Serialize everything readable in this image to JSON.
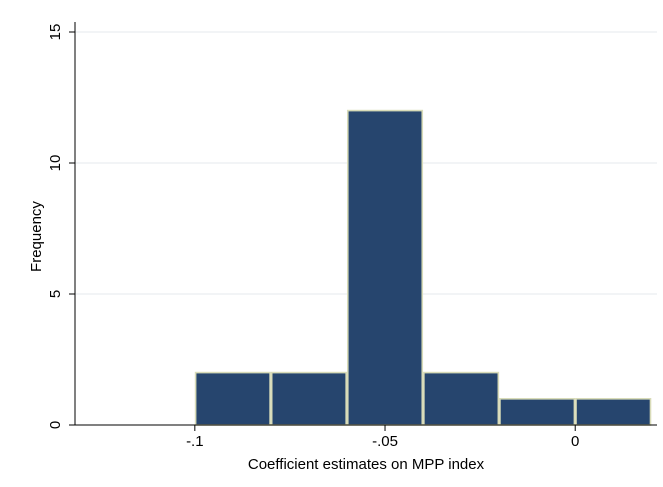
{
  "chart_data": {
    "type": "bar",
    "subtype": "histogram",
    "xlabel": "Coefficient estimates on MPP index",
    "ylabel": "Frequency",
    "xlim": [
      -0.1315,
      0.0215
    ],
    "ylim": [
      0,
      15
    ],
    "bin_width": 0.02,
    "bins": [
      {
        "start": -0.1,
        "end": -0.08,
        "value": 2
      },
      {
        "start": -0.08,
        "end": -0.06,
        "value": 2
      },
      {
        "start": -0.06,
        "end": -0.04,
        "value": 12
      },
      {
        "start": -0.04,
        "end": -0.02,
        "value": 2
      },
      {
        "start": -0.02,
        "end": 0.0,
        "value": 1
      },
      {
        "start": 0.0,
        "end": 0.02,
        "value": 1
      }
    ],
    "x_ticks": [
      {
        "value": -0.1,
        "label": "-.1"
      },
      {
        "value": -0.05,
        "label": "-.05"
      },
      {
        "value": 0,
        "label": "0"
      }
    ],
    "y_ticks": [
      {
        "value": 0,
        "label": "0"
      },
      {
        "value": 5,
        "label": "5"
      },
      {
        "value": 10,
        "label": "10"
      },
      {
        "value": 15,
        "label": "15"
      }
    ],
    "grid": {
      "horizontal": true,
      "vertical": false
    },
    "colors": {
      "bar_fill": "#26456e",
      "bar_edge": "#d8dbb8",
      "grid": "#e6e9ee",
      "axis": "#000000",
      "background": "#ffffff"
    }
  }
}
